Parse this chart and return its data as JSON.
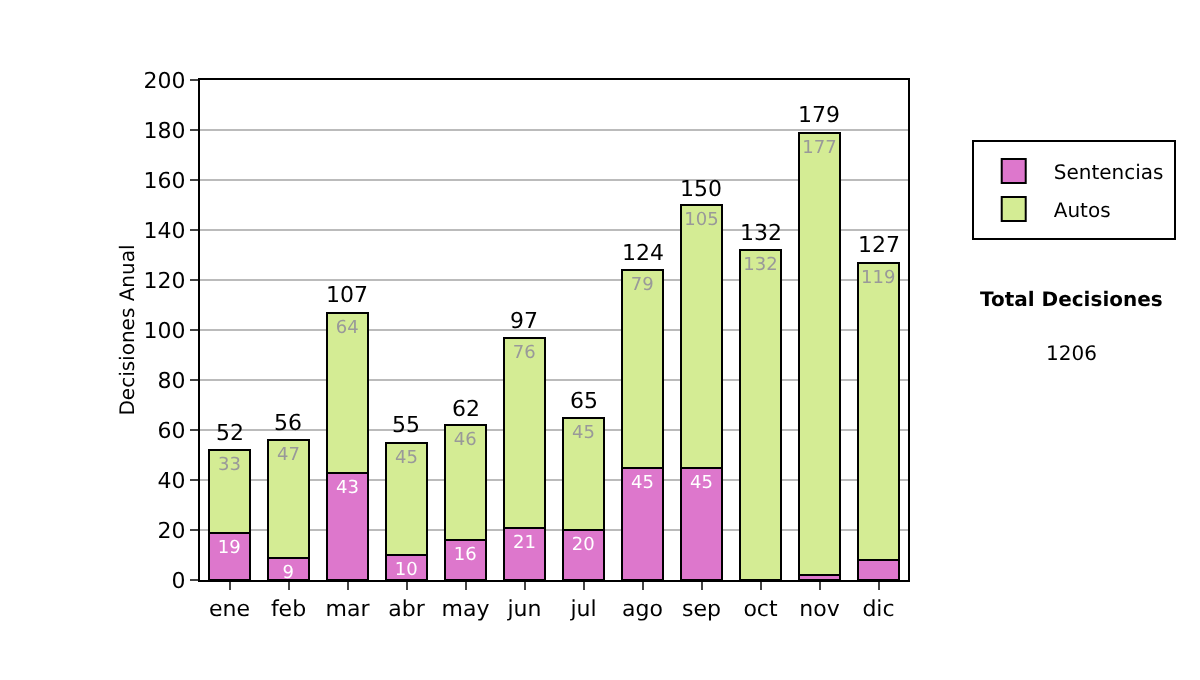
{
  "chart_data": {
    "type": "bar",
    "stacked": true,
    "ylabel": "Decisiones Anual",
    "categories": [
      "ene",
      "feb",
      "mar",
      "abr",
      "may",
      "jun",
      "jul",
      "ago",
      "sep",
      "oct",
      "nov",
      "dic"
    ],
    "series": [
      {
        "name": "Sentencias",
        "color": "#dd77cc",
        "values": [
          19,
          9,
          43,
          10,
          16,
          21,
          20,
          45,
          45,
          0,
          2,
          8
        ],
        "value_labels": [
          "19",
          "9",
          "43",
          "10",
          "16",
          "21",
          "20",
          "45",
          "45",
          null,
          null,
          null
        ]
      },
      {
        "name": "Autos",
        "color": "#d4ec94",
        "values": [
          33,
          47,
          64,
          45,
          46,
          76,
          45,
          79,
          105,
          132,
          177,
          119
        ],
        "value_labels": [
          "33",
          "47",
          "64",
          "45",
          "46",
          "76",
          "45",
          "79",
          "105",
          "132",
          "177",
          "119"
        ]
      }
    ],
    "totals": [
      "52",
      "56",
      "107",
      "55",
      "62",
      "97",
      "65",
      "124",
      "150",
      "132",
      "179",
      "127"
    ],
    "ylim": [
      0,
      200
    ],
    "yticks": [
      0,
      20,
      40,
      60,
      80,
      100,
      120,
      140,
      160,
      180,
      200
    ],
    "grid": "y",
    "legend": "right",
    "annotations": [
      "Total Decisiones",
      "1206"
    ]
  }
}
